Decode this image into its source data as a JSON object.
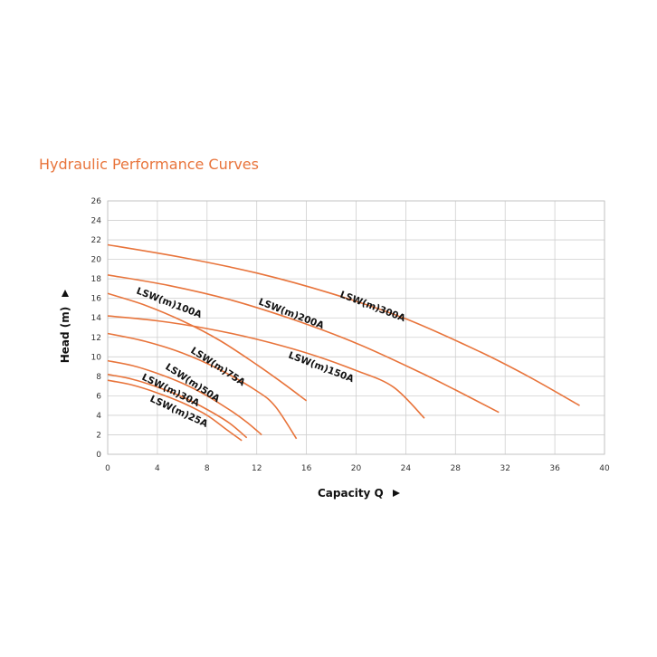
{
  "chart_data": {
    "type": "line",
    "title": "Hydraulic Performance Curves",
    "xlabel": "Capacity Q",
    "ylabel": "Head (m)",
    "xlim": [
      0,
      40
    ],
    "ylim": [
      0,
      26
    ],
    "xticks": [
      0,
      4,
      8,
      12,
      16,
      20,
      24,
      28,
      32,
      36,
      40
    ],
    "yticks": [
      0,
      2,
      4,
      6,
      8,
      10,
      12,
      14,
      16,
      18,
      20,
      22,
      24,
      26
    ],
    "grid": true,
    "line_color": "#e8743b",
    "title_color": "#e8743b",
    "series": [
      {
        "name": "LSW(m)300A",
        "x": [
          0,
          6,
          12,
          18,
          24,
          30,
          34,
          38
        ],
        "y": [
          21.5,
          20.2,
          18.6,
          16.5,
          13.9,
          10.5,
          7.9,
          5.0
        ]
      },
      {
        "name": "LSW(m)200A",
        "x": [
          0,
          5,
          10,
          15,
          20,
          25,
          28,
          31.5
        ],
        "y": [
          18.4,
          17.3,
          15.8,
          13.8,
          11.4,
          8.5,
          6.6,
          4.3
        ]
      },
      {
        "name": "LSW(m)150A",
        "x": [
          0,
          4,
          8,
          12,
          16,
          20,
          23,
          25.5
        ],
        "y": [
          14.2,
          13.7,
          12.9,
          11.8,
          10.4,
          8.6,
          6.9,
          3.7
        ]
      },
      {
        "name": "LSW(m)100A",
        "x": [
          0,
          3,
          6,
          9,
          12,
          14,
          16
        ],
        "y": [
          16.5,
          15.3,
          13.7,
          11.7,
          9.2,
          7.4,
          5.5
        ]
      },
      {
        "name": "LSW(m)75A",
        "x": [
          0,
          3,
          6,
          9,
          12,
          13.5,
          15.2
        ],
        "y": [
          12.4,
          11.6,
          10.4,
          8.7,
          6.5,
          4.9,
          1.6
        ]
      },
      {
        "name": "LSW(m)50A",
        "x": [
          0,
          2,
          4,
          6,
          8,
          10,
          11.2,
          12.4
        ],
        "y": [
          9.6,
          9.1,
          8.3,
          7.3,
          6.0,
          4.4,
          3.3,
          2.0
        ]
      },
      {
        "name": "LSW(m)30A",
        "x": [
          0,
          2,
          4,
          6,
          8,
          9.8,
          11.2
        ],
        "y": [
          8.2,
          7.7,
          6.9,
          5.9,
          4.6,
          3.2,
          1.7
        ]
      },
      {
        "name": "LSW(m)25A",
        "x": [
          0,
          2,
          4,
          6,
          8,
          9.5,
          10.8
        ],
        "y": [
          7.6,
          7.1,
          6.3,
          5.3,
          4.0,
          2.6,
          1.4
        ]
      }
    ]
  }
}
